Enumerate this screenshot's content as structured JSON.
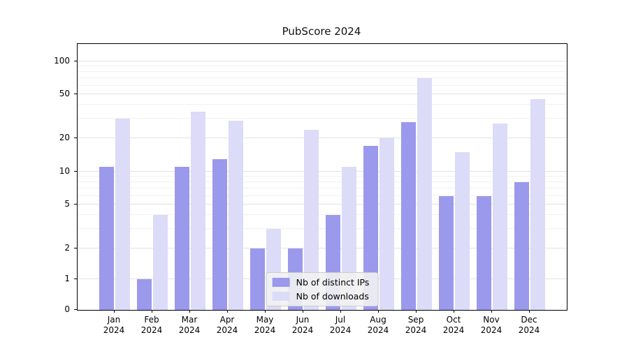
{
  "figure": {
    "title": "PubScore 2024"
  },
  "chart_data": {
    "type": "bar",
    "title": "PubScore 2024",
    "categories": [
      "Jan",
      "Feb",
      "Mar",
      "Apr",
      "May",
      "Jun",
      "Jul",
      "Aug",
      "Sep",
      "Oct",
      "Nov",
      "Dec"
    ],
    "category_year": "2024",
    "series": [
      {
        "name": "Nb of distinct IPs",
        "color": "#9b99ec",
        "values": [
          11,
          1,
          11,
          13,
          2,
          2,
          4,
          17,
          28,
          6,
          6,
          8
        ]
      },
      {
        "name": "Nb of downloads",
        "color": "#dcdbf8",
        "values": [
          30,
          4,
          35,
          29,
          3,
          24,
          11,
          20,
          70,
          15,
          27,
          45
        ]
      }
    ],
    "xlabel": "",
    "ylabel": "",
    "yscale": "symlog",
    "yticks": [
      0,
      1,
      2,
      5,
      10,
      20,
      50,
      100
    ],
    "yticks_minor": [
      3,
      4,
      6,
      7,
      8,
      9,
      30,
      40,
      60,
      70,
      80,
      90
    ],
    "ylim": [
      0,
      140
    ],
    "grid": "horizontal",
    "legend_position": "lower center"
  }
}
